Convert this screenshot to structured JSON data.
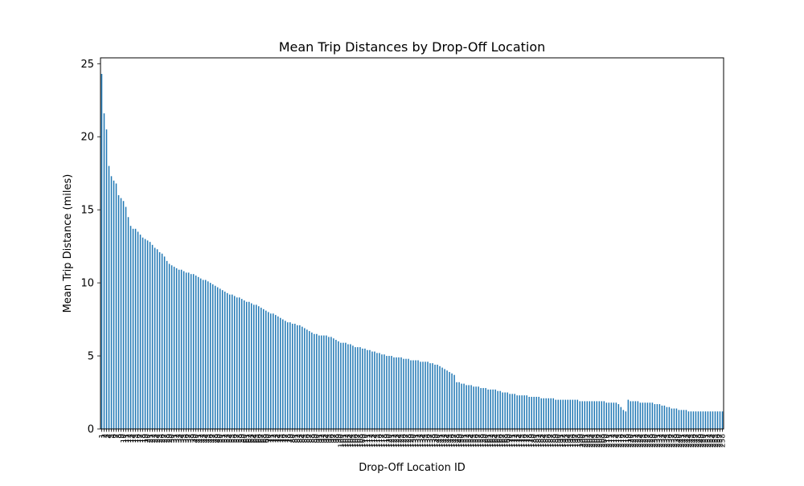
{
  "chart_data": {
    "type": "bar",
    "title": "Mean Trip Distances by Drop-Off Location",
    "xlabel": "Drop-Off Location ID",
    "ylabel": "Mean Trip Distance (miles)",
    "ylim": [
      0,
      25.4
    ],
    "yticks": [
      0,
      5,
      10,
      15,
      20,
      25
    ],
    "grid": false,
    "bar_color": "#1f77b4",
    "categories": [
      "1",
      "2",
      "3",
      "4",
      "5",
      "6",
      "7",
      "8",
      "9",
      "10",
      "11",
      "12",
      "13",
      "14",
      "15",
      "16",
      "17",
      "18",
      "19",
      "20",
      "21",
      "22",
      "23",
      "24",
      "25",
      "26",
      "27",
      "28",
      "29",
      "30",
      "31",
      "32",
      "33",
      "34",
      "35",
      "36",
      "37",
      "38",
      "39",
      "40",
      "41",
      "42",
      "43",
      "44",
      "45",
      "46",
      "47",
      "48",
      "49",
      "50",
      "51",
      "52",
      "53",
      "54",
      "55",
      "56",
      "57",
      "58",
      "59",
      "60",
      "61",
      "62",
      "63",
      "64",
      "65",
      "66",
      "67",
      "68",
      "69",
      "70",
      "71",
      "72",
      "73",
      "74",
      "75",
      "76",
      "77",
      "78",
      "79",
      "80",
      "81",
      "82",
      "83",
      "84",
      "85",
      "86",
      "87",
      "88",
      "89",
      "90",
      "91",
      "92",
      "93",
      "94",
      "95",
      "96",
      "97",
      "98",
      "99",
      "100",
      "101",
      "102",
      "103",
      "104",
      "105",
      "106",
      "107",
      "108",
      "109",
      "110",
      "111",
      "112",
      "113",
      "114",
      "115",
      "116",
      "117",
      "118",
      "119",
      "120",
      "121",
      "122",
      "123",
      "124",
      "125",
      "126",
      "127",
      "128",
      "129",
      "130",
      "131",
      "132",
      "133",
      "134",
      "135",
      "136",
      "137",
      "138",
      "139",
      "140",
      "141",
      "142",
      "143",
      "144",
      "145",
      "146",
      "147",
      "148",
      "149",
      "150",
      "151",
      "152",
      "153",
      "154",
      "155",
      "156",
      "157",
      "158",
      "159",
      "160",
      "161",
      "162",
      "163",
      "164",
      "165",
      "166",
      "167",
      "168",
      "169",
      "170",
      "171",
      "172",
      "173",
      "174",
      "175",
      "176",
      "177",
      "178",
      "179",
      "180",
      "181",
      "182",
      "183",
      "184",
      "185",
      "186",
      "187",
      "188",
      "189",
      "190",
      "191",
      "192",
      "193",
      "194",
      "195",
      "196",
      "197",
      "198",
      "199",
      "200",
      "201",
      "202",
      "203",
      "204",
      "205",
      "206",
      "207",
      "208",
      "209",
      "210",
      "211",
      "212",
      "213",
      "214",
      "215",
      "216",
      "217",
      "218",
      "219",
      "220",
      "221",
      "222",
      "223",
      "224",
      "225",
      "226",
      "227",
      "228",
      "229",
      "230",
      "231",
      "232",
      "233",
      "234",
      "235",
      "236",
      "237",
      "238",
      "239",
      "240",
      "241",
      "242",
      "243",
      "244",
      "245",
      "246",
      "247",
      "248",
      "249",
      "250",
      "251",
      "252",
      "253",
      "254",
      "255",
      "256",
      "257",
      "258"
    ],
    "values": [
      24.3,
      21.6,
      20.5,
      18.0,
      17.3,
      17.0,
      16.8,
      16.0,
      15.8,
      15.6,
      15.2,
      14.5,
      13.9,
      13.7,
      13.7,
      13.5,
      13.3,
      13.1,
      13.0,
      12.9,
      12.8,
      12.6,
      12.4,
      12.3,
      12.1,
      12.0,
      11.8,
      11.5,
      11.3,
      11.2,
      11.1,
      11.0,
      10.9,
      10.9,
      10.8,
      10.7,
      10.7,
      10.6,
      10.6,
      10.5,
      10.4,
      10.3,
      10.2,
      10.2,
      10.1,
      10.0,
      9.9,
      9.8,
      9.7,
      9.6,
      9.5,
      9.4,
      9.3,
      9.2,
      9.2,
      9.1,
      9.0,
      9.0,
      8.9,
      8.8,
      8.7,
      8.7,
      8.6,
      8.5,
      8.5,
      8.4,
      8.3,
      8.2,
      8.1,
      8.0,
      7.9,
      7.9,
      7.8,
      7.7,
      7.6,
      7.5,
      7.4,
      7.3,
      7.3,
      7.2,
      7.2,
      7.1,
      7.1,
      7.0,
      6.9,
      6.8,
      6.7,
      6.6,
      6.5,
      6.5,
      6.4,
      6.4,
      6.4,
      6.4,
      6.3,
      6.3,
      6.2,
      6.1,
      6.0,
      5.9,
      5.9,
      5.9,
      5.8,
      5.8,
      5.7,
      5.6,
      5.6,
      5.6,
      5.5,
      5.5,
      5.4,
      5.4,
      5.3,
      5.3,
      5.2,
      5.2,
      5.1,
      5.1,
      5.0,
      5.0,
      5.0,
      4.9,
      4.9,
      4.9,
      4.9,
      4.8,
      4.8,
      4.8,
      4.7,
      4.7,
      4.7,
      4.7,
      4.6,
      4.6,
      4.6,
      4.6,
      4.5,
      4.5,
      4.4,
      4.4,
      4.3,
      4.2,
      4.1,
      4.0,
      3.9,
      3.8,
      3.7,
      3.2,
      3.2,
      3.1,
      3.1,
      3.0,
      3.0,
      3.0,
      2.9,
      2.9,
      2.9,
      2.8,
      2.8,
      2.8,
      2.7,
      2.7,
      2.7,
      2.7,
      2.6,
      2.6,
      2.5,
      2.5,
      2.5,
      2.4,
      2.4,
      2.4,
      2.3,
      2.3,
      2.3,
      2.3,
      2.3,
      2.2,
      2.2,
      2.2,
      2.2,
      2.2,
      2.1,
      2.1,
      2.1,
      2.1,
      2.1,
      2.1,
      2.0,
      2.0,
      2.0,
      2.0,
      2.0,
      2.0,
      2.0,
      2.0,
      2.0,
      2.0,
      1.9,
      1.9,
      1.9,
      1.9,
      1.9,
      1.9,
      1.9,
      1.9,
      1.9,
      1.9,
      1.9,
      1.8,
      1.8,
      1.8,
      1.8,
      1.8,
      1.7,
      1.5,
      1.3,
      1.2,
      2.0,
      1.9,
      1.9,
      1.9,
      1.9,
      1.8,
      1.8,
      1.8,
      1.8,
      1.8,
      1.8,
      1.7,
      1.7,
      1.7,
      1.6,
      1.6,
      1.5,
      1.5,
      1.4,
      1.4,
      1.4,
      1.3,
      1.3,
      1.3,
      1.3,
      1.2,
      1.2,
      1.2,
      1.2,
      1.2,
      1.2,
      1.2,
      1.2,
      1.2,
      1.2,
      1.2,
      1.2,
      1.2,
      1.2,
      1.2
    ]
  }
}
